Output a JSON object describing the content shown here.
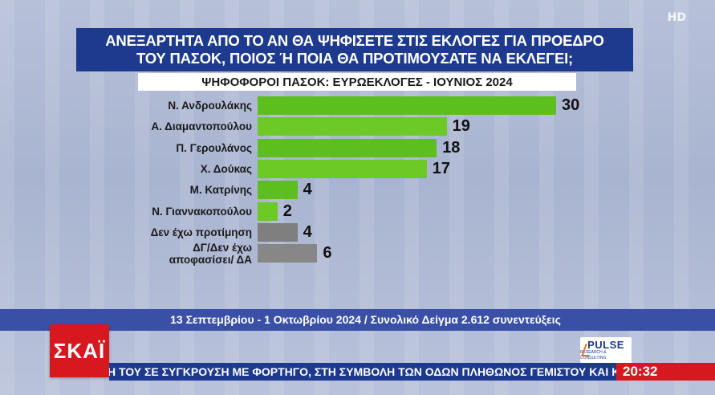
{
  "channel": {
    "hd_badge": "HD",
    "logo_text": "ΣΚΑΪ"
  },
  "pollster": {
    "name": "PULSE",
    "tagline": "RESEARCH & CONSULTING"
  },
  "chart_data": {
    "type": "bar",
    "orientation": "horizontal",
    "title": "ΑΝΕΞΑΡΤΗΤΑ ΑΠΟ ΤΟ ΑΝ ΘΑ ΨΗΦΙΣΕΤΕ ΣΤΙΣ ΕΚΛΟΓΕΣ ΓΙΑ ΠΡΟΕΔΡΟ ΤΟΥ ΠΑΣΟΚ, ΠΟΙΟΣ Ή ΠΟΙΑ ΘΑ ΠΡΟΤΙΜΟΥΣΑΤΕ ΝΑ ΕΚΛΕΓΕΙ;",
    "title_lines": [
      "ΑΝΕΞΑΡΤΗΤΑ ΑΠΟ ΤΟ ΑΝ ΘΑ ΨΗΦΙΣΕΤΕ ΣΤΙΣ ΕΚΛΟΓΕΣ ΓΙΑ ΠΡΟΕΔΡΟ",
      "ΤΟΥ ΠΑΣΟΚ, ΠΟΙΟΣ Ή ΠΟΙΑ ΘΑ ΠΡΟΤΙΜΟΥΣΑΤΕ ΝΑ ΕΚΛΕΓΕΙ;"
    ],
    "subtitle": "ΨΗΦΟΦΟΡΟΙ ΠΑΣΟΚ: ΕΥΡΩΕΚΛΟΓΕΣ - ΙΟΥΝΙΟΣ 2024",
    "categories": [
      [
        "Ν. Ανδρουλάκης"
      ],
      [
        "Α. Διαμαντοπούλου"
      ],
      [
        "Π. Γερουλάνος"
      ],
      [
        "Χ. Δούκας"
      ],
      [
        "Μ. Κατρίνης"
      ],
      [
        "Ν. Γιαννακοπούλου"
      ],
      [
        "Δεν έχω προτίμηση"
      ],
      [
        "ΔΓ/Δεν έχω",
        "αποφασίσει/ ΔΑ"
      ]
    ],
    "values": [
      30,
      19,
      18,
      17,
      4,
      2,
      4,
      6
    ],
    "bar_colors": [
      "#5cbf1d",
      "#6cc926",
      "#5cbf1d",
      "#6cc926",
      "#5cbf1d",
      "#6cc926",
      "#7f7f7f",
      "#878787"
    ],
    "xlim": [
      0,
      30
    ],
    "grid": false,
    "legend": "none"
  },
  "footer": {
    "fieldwork": "13 Σεπτεμβρίου - 1 Οκτωβρίου 2024 / Συνολικό Δείγμα 2.612 συνεντεύξεις"
  },
  "ticker": {
    "text": "Η ΤΟΥ ΣΕ ΣΥΓΚΡΟΥΣΗ ΜΕ ΦΟΡΤΗΓΟ, ΣΤΗ ΣΥΜΒΟΛΗ ΤΩΝ ΟΔΩΝ ΠΛΗΘΩΝΟΣ ΓΕΜΙΣΤΟΥ ΚΑΙ ΚΑΙ"
  },
  "clock": {
    "time": "20:32"
  }
}
